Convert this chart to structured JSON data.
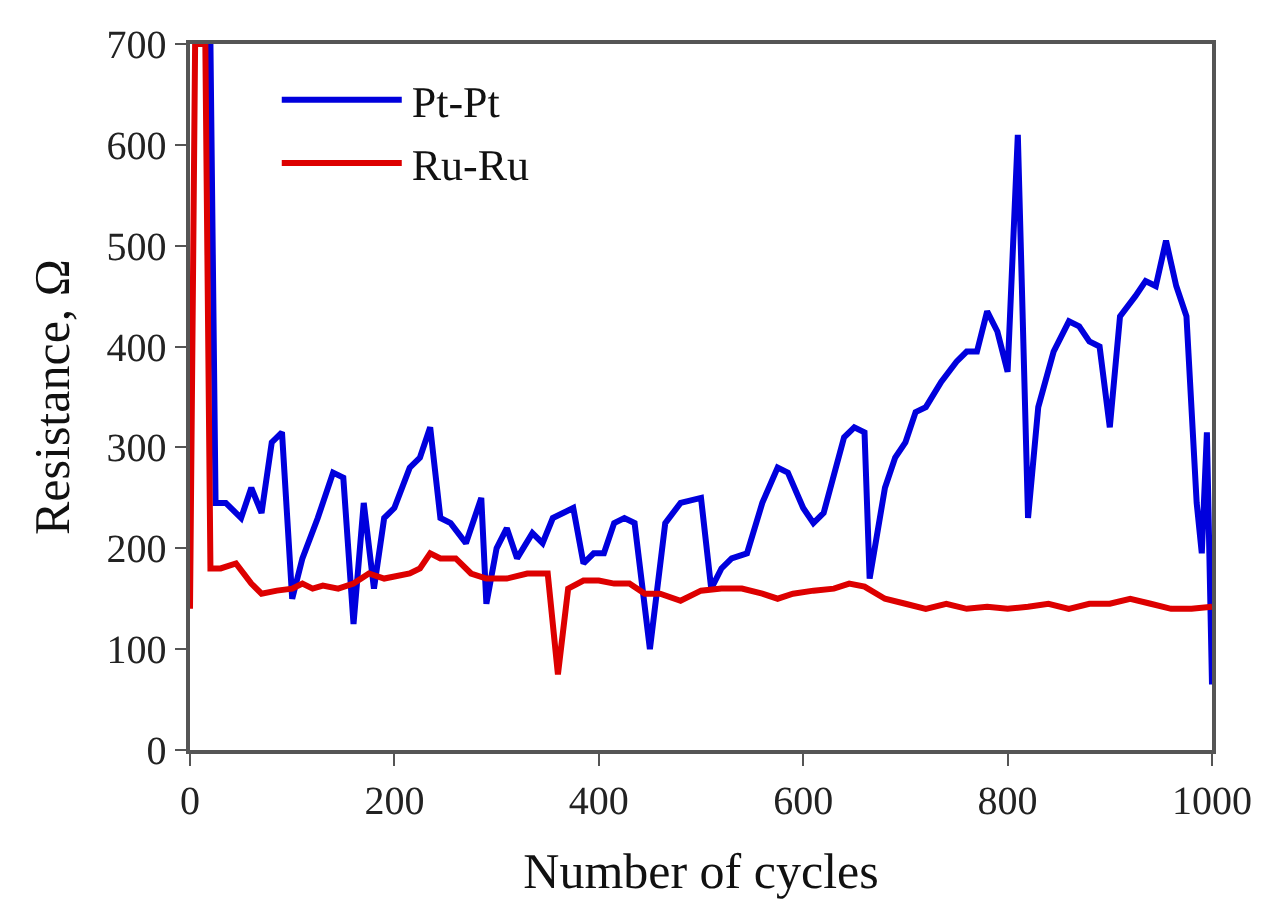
{
  "chart_data": {
    "type": "line",
    "xlabel": "Number of cycles",
    "ylabel": "Resistance, Ω",
    "xlim": [
      0,
      1000
    ],
    "ylim": [
      0,
      700
    ],
    "xticks": [
      0,
      200,
      400,
      600,
      800,
      1000
    ],
    "yticks": [
      0,
      100,
      200,
      300,
      400,
      500,
      600,
      700
    ],
    "grid": false,
    "legend": "top left",
    "marker": "none",
    "line_style": "solid",
    "series": [
      {
        "name": "Pt-Pt",
        "color": "#0000dd",
        "x": [
          20,
          25,
          35,
          50,
          60,
          70,
          80,
          90,
          100,
          110,
          125,
          140,
          150,
          160,
          170,
          180,
          190,
          200,
          215,
          225,
          235,
          245,
          255,
          270,
          285,
          290,
          300,
          310,
          320,
          335,
          345,
          355,
          365,
          375,
          385,
          395,
          405,
          415,
          425,
          435,
          450,
          465,
          480,
          500,
          510,
          520,
          530,
          545,
          560,
          575,
          585,
          600,
          610,
          620,
          640,
          650,
          660,
          665,
          680,
          690,
          700,
          710,
          720,
          735,
          750,
          760,
          770,
          780,
          790,
          800,
          810,
          820,
          830,
          845,
          860,
          870,
          880,
          890,
          900,
          910,
          925,
          935,
          945,
          955,
          965,
          975,
          985,
          990,
          995,
          1000
        ],
        "values": [
          700,
          245,
          245,
          230,
          260,
          235,
          305,
          315,
          150,
          190,
          230,
          275,
          270,
          125,
          245,
          160,
          230,
          240,
          280,
          290,
          320,
          230,
          225,
          205,
          250,
          145,
          200,
          220,
          190,
          215,
          205,
          230,
          235,
          240,
          185,
          195,
          195,
          225,
          230,
          225,
          100,
          225,
          245,
          250,
          160,
          180,
          190,
          195,
          245,
          280,
          275,
          240,
          225,
          235,
          310,
          320,
          315,
          170,
          260,
          290,
          305,
          335,
          340,
          365,
          385,
          395,
          395,
          435,
          415,
          375,
          610,
          230,
          340,
          395,
          425,
          420,
          405,
          400,
          320,
          430,
          450,
          465,
          460,
          505,
          460,
          430,
          245,
          195,
          315,
          65
        ]
      },
      {
        "name": "Ru-Ru",
        "color": "#dd0000",
        "x": [
          0,
          5,
          15,
          20,
          30,
          45,
          60,
          70,
          85,
          100,
          110,
          120,
          130,
          145,
          160,
          175,
          190,
          200,
          215,
          225,
          235,
          245,
          260,
          275,
          290,
          310,
          330,
          350,
          360,
          370,
          385,
          400,
          415,
          430,
          445,
          460,
          480,
          500,
          520,
          540,
          560,
          575,
          590,
          610,
          630,
          645,
          660,
          680,
          700,
          720,
          740,
          760,
          780,
          800,
          820,
          840,
          860,
          880,
          900,
          920,
          940,
          960,
          980,
          1000
        ],
        "values": [
          140,
          700,
          700,
          180,
          180,
          185,
          165,
          155,
          158,
          160,
          165,
          160,
          163,
          160,
          165,
          175,
          170,
          172,
          175,
          180,
          195,
          190,
          190,
          175,
          170,
          170,
          175,
          175,
          75,
          160,
          168,
          168,
          165,
          165,
          155,
          155,
          148,
          158,
          160,
          160,
          155,
          150,
          155,
          158,
          160,
          165,
          162,
          150,
          145,
          140,
          145,
          140,
          142,
          140,
          142,
          145,
          140,
          145,
          145,
          150,
          145,
          140,
          140,
          142
        ]
      }
    ]
  }
}
